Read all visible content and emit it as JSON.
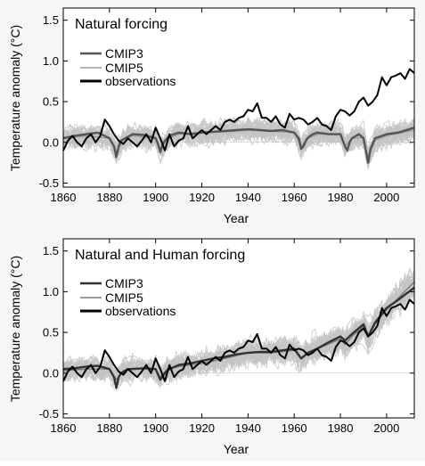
{
  "chart_data": [
    {
      "type": "line",
      "title": "Natural forcing",
      "xlabel": "Year",
      "ylabel": "Temperature anomaly (°C)",
      "xlim": [
        1860,
        2012
      ],
      "ylim": [
        -0.55,
        1.65
      ],
      "xticks": [
        "1860",
        "1880",
        "1900",
        "1920",
        "1940",
        "1960",
        "1980",
        "2000"
      ],
      "yticks": [
        "-0.5",
        "0.0",
        "0.5",
        "1.0",
        "1.5"
      ],
      "legend_position": "top-left",
      "ensemble_color": "#c4c4c4",
      "series": [
        {
          "name": "CMIP3",
          "color": "#555555",
          "x": [
            1860,
            1865,
            1870,
            1875,
            1880,
            1882,
            1883,
            1884,
            1885,
            1888,
            1890,
            1895,
            1900,
            1901,
            1902,
            1903,
            1904,
            1906,
            1910,
            1915,
            1920,
            1925,
            1930,
            1935,
            1940,
            1945,
            1950,
            1955,
            1960,
            1962,
            1963,
            1964,
            1965,
            1966,
            1968,
            1970,
            1975,
            1980,
            1982,
            1983,
            1984,
            1985,
            1988,
            1990,
            1991,
            1992,
            1993,
            1995,
            2000,
            2005,
            2012
          ],
          "y": [
            0.05,
            0.08,
            0.1,
            0.12,
            0.05,
            -0.05,
            -0.18,
            -0.05,
            0.02,
            0.07,
            0.1,
            0.09,
            0.05,
            -0.02,
            -0.12,
            -0.03,
            0.02,
            0.08,
            0.12,
            0.1,
            0.12,
            0.13,
            0.14,
            0.15,
            0.16,
            0.15,
            0.14,
            0.15,
            0.12,
            0.05,
            -0.08,
            -0.05,
            0.02,
            0.06,
            0.1,
            0.12,
            0.1,
            0.1,
            -0.05,
            -0.1,
            0.0,
            0.05,
            0.1,
            0.05,
            -0.1,
            -0.25,
            -0.08,
            0.05,
            0.1,
            0.12,
            0.18
          ]
        },
        {
          "name": "CMIP5",
          "color": "#9a9a9a",
          "x": [
            1860,
            1870,
            1880,
            1883,
            1886,
            1890,
            1900,
            1902,
            1905,
            1910,
            1920,
            1930,
            1940,
            1950,
            1960,
            1963,
            1966,
            1970,
            1980,
            1982,
            1985,
            1990,
            1992,
            1995,
            2000,
            2012
          ],
          "y": [
            0.05,
            0.08,
            0.05,
            -0.12,
            0.03,
            0.08,
            0.05,
            -0.08,
            0.04,
            0.1,
            0.12,
            0.13,
            0.15,
            0.14,
            0.12,
            -0.05,
            0.05,
            0.1,
            0.1,
            -0.05,
            0.05,
            0.06,
            -0.2,
            0.02,
            0.08,
            0.15
          ]
        },
        {
          "name": "observations",
          "color": "#000000",
          "x": [
            1860,
            1862,
            1864,
            1866,
            1868,
            1870,
            1872,
            1874,
            1876,
            1878,
            1880,
            1882,
            1884,
            1886,
            1888,
            1890,
            1892,
            1894,
            1896,
            1898,
            1900,
            1902,
            1904,
            1906,
            1908,
            1910,
            1912,
            1914,
            1916,
            1918,
            1920,
            1922,
            1924,
            1926,
            1928,
            1930,
            1932,
            1934,
            1936,
            1938,
            1940,
            1942,
            1944,
            1946,
            1948,
            1950,
            1952,
            1954,
            1956,
            1958,
            1960,
            1962,
            1964,
            1966,
            1968,
            1970,
            1972,
            1974,
            1976,
            1978,
            1980,
            1982,
            1984,
            1986,
            1988,
            1990,
            1992,
            1994,
            1996,
            1998,
            2000,
            2002,
            2004,
            2006,
            2008,
            2010,
            2012
          ],
          "y": [
            -0.1,
            0.02,
            0.08,
            0.0,
            -0.05,
            0.05,
            0.1,
            0.0,
            0.08,
            0.28,
            0.2,
            0.1,
            0.02,
            -0.02,
            0.05,
            0.0,
            -0.05,
            0.02,
            0.1,
            0.0,
            0.18,
            0.05,
            -0.1,
            0.1,
            -0.05,
            0.02,
            0.05,
            0.2,
            0.05,
            0.1,
            0.15,
            0.1,
            0.15,
            0.2,
            0.15,
            0.25,
            0.28,
            0.25,
            0.3,
            0.32,
            0.4,
            0.38,
            0.48,
            0.3,
            0.3,
            0.25,
            0.32,
            0.22,
            0.18,
            0.35,
            0.28,
            0.3,
            0.28,
            0.22,
            0.25,
            0.3,
            0.22,
            0.2,
            0.15,
            0.32,
            0.4,
            0.38,
            0.33,
            0.38,
            0.5,
            0.55,
            0.45,
            0.5,
            0.58,
            0.8,
            0.7,
            0.8,
            0.82,
            0.85,
            0.78,
            0.9,
            0.85
          ]
        }
      ]
    },
    {
      "type": "line",
      "title": "Natural and Human forcing",
      "xlabel": "Year",
      "ylabel": "Temperature anomaly (°C)",
      "xlim": [
        1860,
        2012
      ],
      "ylim": [
        -0.55,
        1.65
      ],
      "xticks": [
        "1860",
        "1880",
        "1900",
        "1920",
        "1940",
        "1960",
        "1980",
        "2000"
      ],
      "yticks": [
        "-0.5",
        "0.0",
        "0.5",
        "1.0",
        "1.5"
      ],
      "legend_position": "top-left",
      "ensemble_color": "#c4c4c4",
      "series": [
        {
          "name": "CMIP3",
          "color": "#333333",
          "x": [
            1860,
            1865,
            1870,
            1875,
            1880,
            1882,
            1883,
            1884,
            1885,
            1888,
            1890,
            1895,
            1900,
            1902,
            1904,
            1906,
            1910,
            1915,
            1920,
            1925,
            1930,
            1935,
            1940,
            1945,
            1950,
            1955,
            1960,
            1963,
            1966,
            1970,
            1975,
            1980,
            1982,
            1985,
            1990,
            1992,
            1995,
            2000,
            2005,
            2012
          ],
          "y": [
            0.05,
            0.06,
            0.08,
            0.09,
            0.05,
            -0.05,
            -0.18,
            -0.05,
            0.0,
            0.05,
            0.05,
            0.06,
            0.05,
            -0.08,
            0.0,
            0.05,
            0.1,
            0.12,
            0.15,
            0.18,
            0.2,
            0.23,
            0.25,
            0.26,
            0.26,
            0.28,
            0.3,
            0.18,
            0.25,
            0.3,
            0.38,
            0.45,
            0.4,
            0.48,
            0.6,
            0.45,
            0.62,
            0.8,
            0.9,
            1.05
          ]
        },
        {
          "name": "CMIP5",
          "color": "#7a7a7a",
          "x": [
            1860,
            1870,
            1880,
            1883,
            1886,
            1890,
            1900,
            1902,
            1905,
            1910,
            1920,
            1930,
            1940,
            1950,
            1960,
            1963,
            1966,
            1970,
            1980,
            1982,
            1985,
            1990,
            1992,
            1995,
            2000,
            2005,
            2012
          ],
          "y": [
            0.03,
            0.05,
            0.05,
            -0.08,
            0.03,
            0.06,
            0.05,
            -0.05,
            0.05,
            0.08,
            0.12,
            0.18,
            0.25,
            0.25,
            0.28,
            0.18,
            0.25,
            0.3,
            0.42,
            0.35,
            0.45,
            0.58,
            0.45,
            0.6,
            0.78,
            0.92,
            1.12
          ]
        },
        {
          "name": "observations",
          "color": "#000000",
          "x": [
            1860,
            1862,
            1864,
            1866,
            1868,
            1870,
            1872,
            1874,
            1876,
            1878,
            1880,
            1882,
            1884,
            1886,
            1888,
            1890,
            1892,
            1894,
            1896,
            1898,
            1900,
            1902,
            1904,
            1906,
            1908,
            1910,
            1912,
            1914,
            1916,
            1918,
            1920,
            1922,
            1924,
            1926,
            1928,
            1930,
            1932,
            1934,
            1936,
            1938,
            1940,
            1942,
            1944,
            1946,
            1948,
            1950,
            1952,
            1954,
            1956,
            1958,
            1960,
            1962,
            1964,
            1966,
            1968,
            1970,
            1972,
            1974,
            1976,
            1978,
            1980,
            1982,
            1984,
            1986,
            1988,
            1990,
            1992,
            1994,
            1996,
            1998,
            2000,
            2002,
            2004,
            2006,
            2008,
            2010,
            2012
          ],
          "y": [
            -0.1,
            0.02,
            0.08,
            0.0,
            -0.05,
            0.05,
            0.1,
            0.0,
            0.08,
            0.28,
            0.2,
            0.1,
            0.02,
            -0.02,
            0.05,
            0.0,
            -0.05,
            0.02,
            0.1,
            0.0,
            0.18,
            0.05,
            -0.1,
            0.1,
            -0.05,
            0.02,
            0.05,
            0.2,
            0.05,
            0.1,
            0.15,
            0.1,
            0.15,
            0.2,
            0.15,
            0.25,
            0.28,
            0.25,
            0.3,
            0.32,
            0.4,
            0.38,
            0.48,
            0.3,
            0.3,
            0.25,
            0.32,
            0.22,
            0.18,
            0.35,
            0.28,
            0.3,
            0.28,
            0.22,
            0.25,
            0.3,
            0.22,
            0.2,
            0.15,
            0.32,
            0.4,
            0.38,
            0.33,
            0.38,
            0.5,
            0.55,
            0.45,
            0.5,
            0.58,
            0.8,
            0.7,
            0.8,
            0.82,
            0.85,
            0.78,
            0.9,
            0.85
          ]
        }
      ]
    }
  ]
}
